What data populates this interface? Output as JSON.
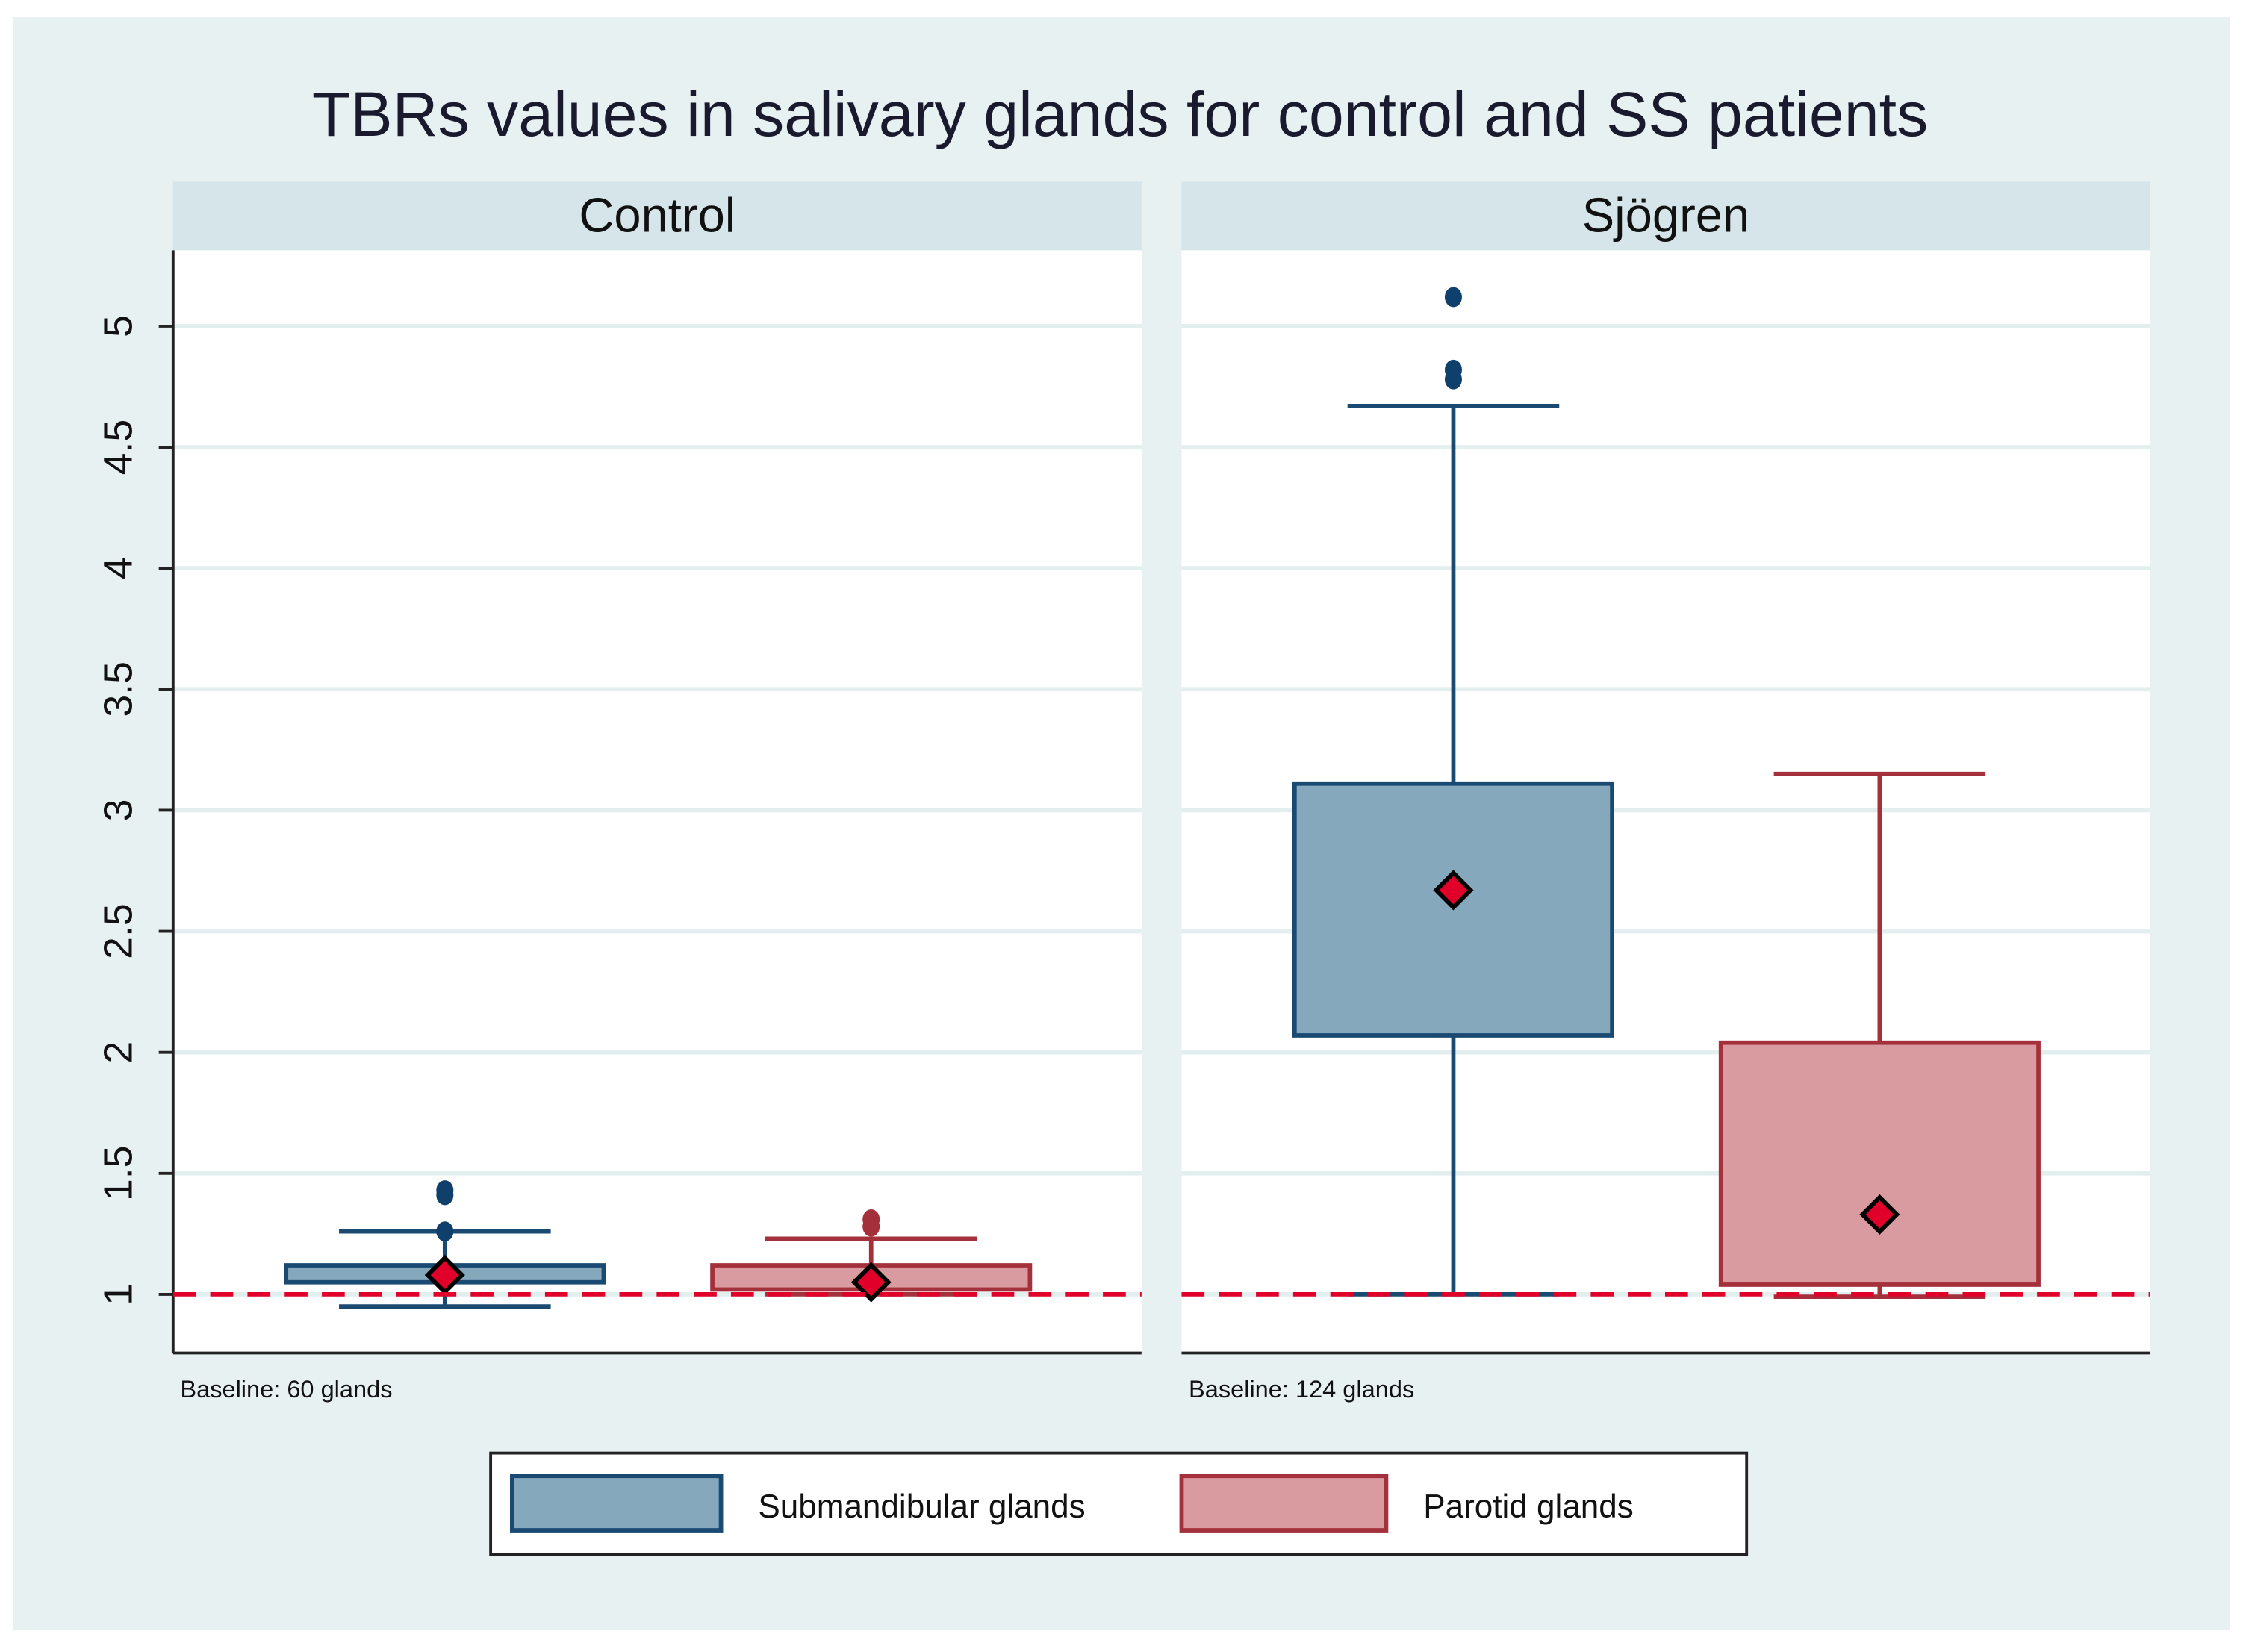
{
  "chart_data": {
    "type": "box",
    "title": "TBRs values in salivary glands for control and SS patients",
    "ylabel": "",
    "ylim": [
      0.75,
      5.3
    ],
    "yticks": [
      "1",
      "1.5",
      "2",
      "2.5",
      "3",
      "3.5",
      "4",
      "4.5",
      "5"
    ],
    "reference_line": {
      "y": 1,
      "style": "dashed",
      "color": "#e0002a"
    },
    "grid": true,
    "panels": [
      {
        "name": "Control",
        "note": "Baseline: 60 glands",
        "boxes": [
          {
            "series": "Submandibular glands",
            "whisker_low": 0.95,
            "q1": 1.05,
            "q3": 1.12,
            "whisker_high": 1.26,
            "marker": 1.08,
            "outliers": [
              1.26,
              1.41,
              1.43
            ]
          },
          {
            "series": "Parotid glands",
            "whisker_low": 1.0,
            "q1": 1.02,
            "q3": 1.12,
            "whisker_high": 1.23,
            "marker": 1.05,
            "outliers": [
              1.28,
              1.31
            ]
          }
        ]
      },
      {
        "name": "Sjögren",
        "note": "Baseline: 124 glands",
        "boxes": [
          {
            "series": "Submandibular glands",
            "whisker_low": 1.0,
            "q1": 2.07,
            "q3": 3.11,
            "whisker_high": 4.67,
            "marker": 2.67,
            "outliers": [
              4.78,
              4.82,
              5.12
            ]
          },
          {
            "series": "Parotid glands",
            "whisker_low": 0.99,
            "q1": 1.04,
            "q3": 2.04,
            "whisker_high": 3.15,
            "marker": 1.33,
            "outliers": []
          }
        ]
      }
    ],
    "legend": {
      "placement": "bottom",
      "entries": [
        {
          "label": "Submandibular glands",
          "fill": "#85a8bc",
          "stroke": "#1a4a72"
        },
        {
          "label": "Parotid glands",
          "fill": "#d99ba0",
          "stroke": "#a3303a"
        }
      ]
    },
    "colors": {
      "background": "#e8f1f2",
      "header": "#d6e5ea",
      "marker": "#e0002a"
    }
  }
}
